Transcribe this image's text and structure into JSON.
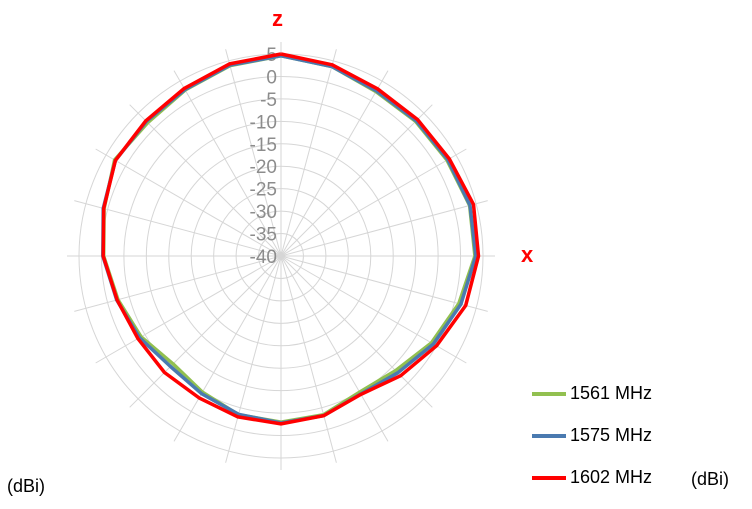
{
  "chart_data": {
    "type": "polar-line",
    "axis_top_label": "z",
    "axis_right_label": "x",
    "unit_left": "(dBi)",
    "unit_right": "(dBi)",
    "radial_min": -40,
    "radial_max": 5,
    "radial_ticks": [
      "5",
      "0",
      "-5",
      "-10",
      "-15",
      "-20",
      "-25",
      "-30",
      "-35",
      "-40"
    ],
    "angles_deg": [
      0,
      15,
      30,
      45,
      60,
      75,
      90,
      105,
      120,
      135,
      150,
      165,
      180,
      195,
      210,
      225,
      240,
      255,
      270,
      285,
      300,
      315,
      330,
      345
    ],
    "grid": true,
    "legend_position": "bottom-right",
    "series": [
      {
        "name": "1561 MHz",
        "color": "#92c050",
        "values": [
          4.6,
          3.7,
          2.3,
          2.4,
          2.7,
          3.5,
          3.2,
          1.0,
          -1.3,
          -3.9,
          -5.0,
          -3.4,
          -3.0,
          -3.4,
          -5.0,
          -6.0,
          -4.0,
          -2.4,
          -0.5,
          0.8,
          2.8,
          2.0,
          2.7,
          3.9
        ]
      },
      {
        "name": "1575 MHz",
        "color": "#4a7ab0",
        "values": [
          4.6,
          3.7,
          2.5,
          2.6,
          2.9,
          3.6,
          3.4,
          1.5,
          -0.8,
          -3.2,
          -4.5,
          -3.2,
          -2.8,
          -3.5,
          -4.6,
          -5.2,
          -3.6,
          -2.1,
          -0.3,
          1.0,
          2.6,
          2.4,
          2.8,
          4.0
        ]
      },
      {
        "name": "1602 MHz",
        "color": "#ff0000",
        "values": [
          5.0,
          4.1,
          3.0,
          3.0,
          3.3,
          4.4,
          4.0,
          2.6,
          0.0,
          -2.3,
          -4.4,
          -3.2,
          -2.6,
          -2.9,
          -3.5,
          -3.3,
          -3.2,
          -2.2,
          -0.4,
          0.9,
          2.6,
          2.6,
          3.1,
          4.3
        ]
      }
    ]
  }
}
